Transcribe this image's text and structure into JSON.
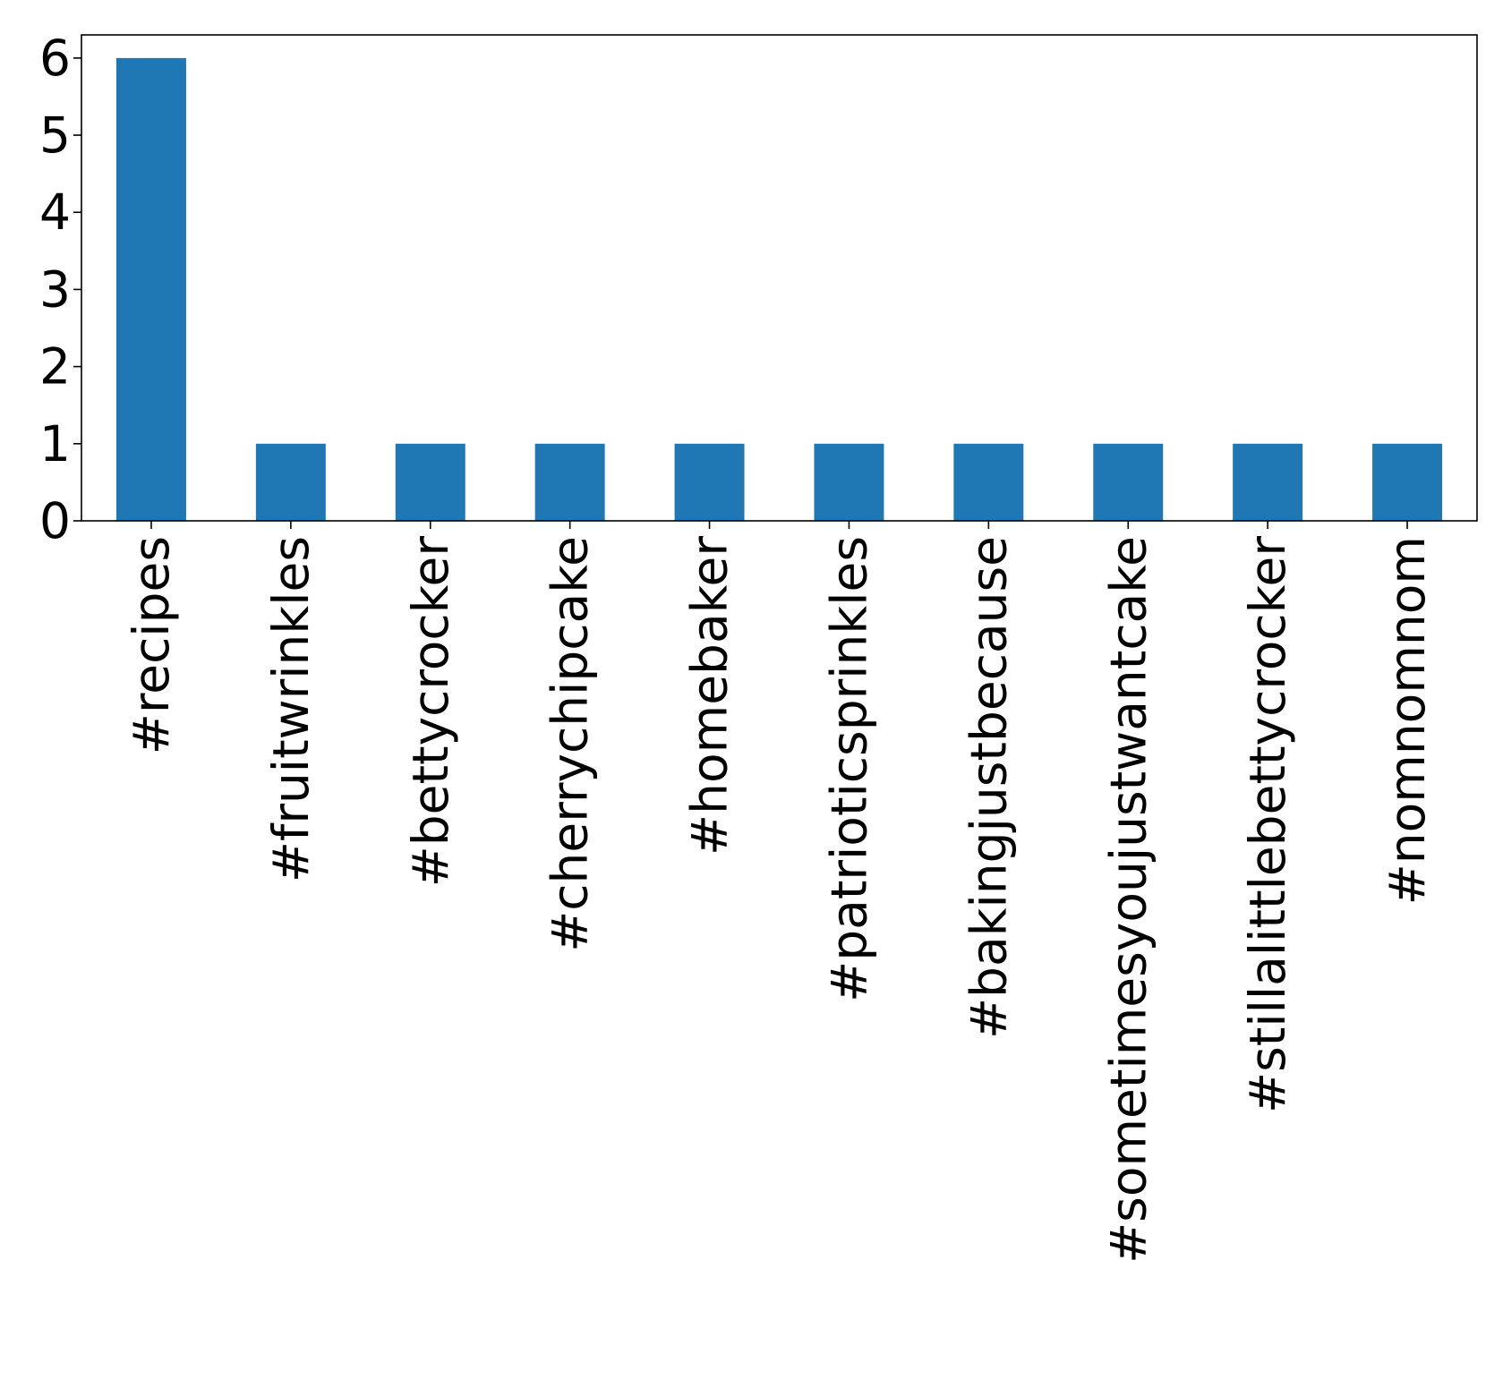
{
  "chart_data": {
    "type": "bar",
    "title": "",
    "xlabel": "",
    "ylabel": "",
    "categories": [
      "#recipes",
      "#fruitwrinkles",
      "#bettycrocker",
      "#cherrychipcake",
      "#homebaker",
      "#patrioticsprinkles",
      "#bakingjustbecause",
      "#sometimesyoujustwantcake",
      "#stillalittlebettycrocker",
      "#nomnomnom"
    ],
    "values": [
      6,
      1,
      1,
      1,
      1,
      1,
      1,
      1,
      1,
      1
    ],
    "ylim": [
      0,
      6.3
    ],
    "yticks": [
      0,
      1,
      2,
      3,
      4,
      5,
      6
    ],
    "bar_color": "#1f77b4",
    "grid": false,
    "legend": "none"
  }
}
